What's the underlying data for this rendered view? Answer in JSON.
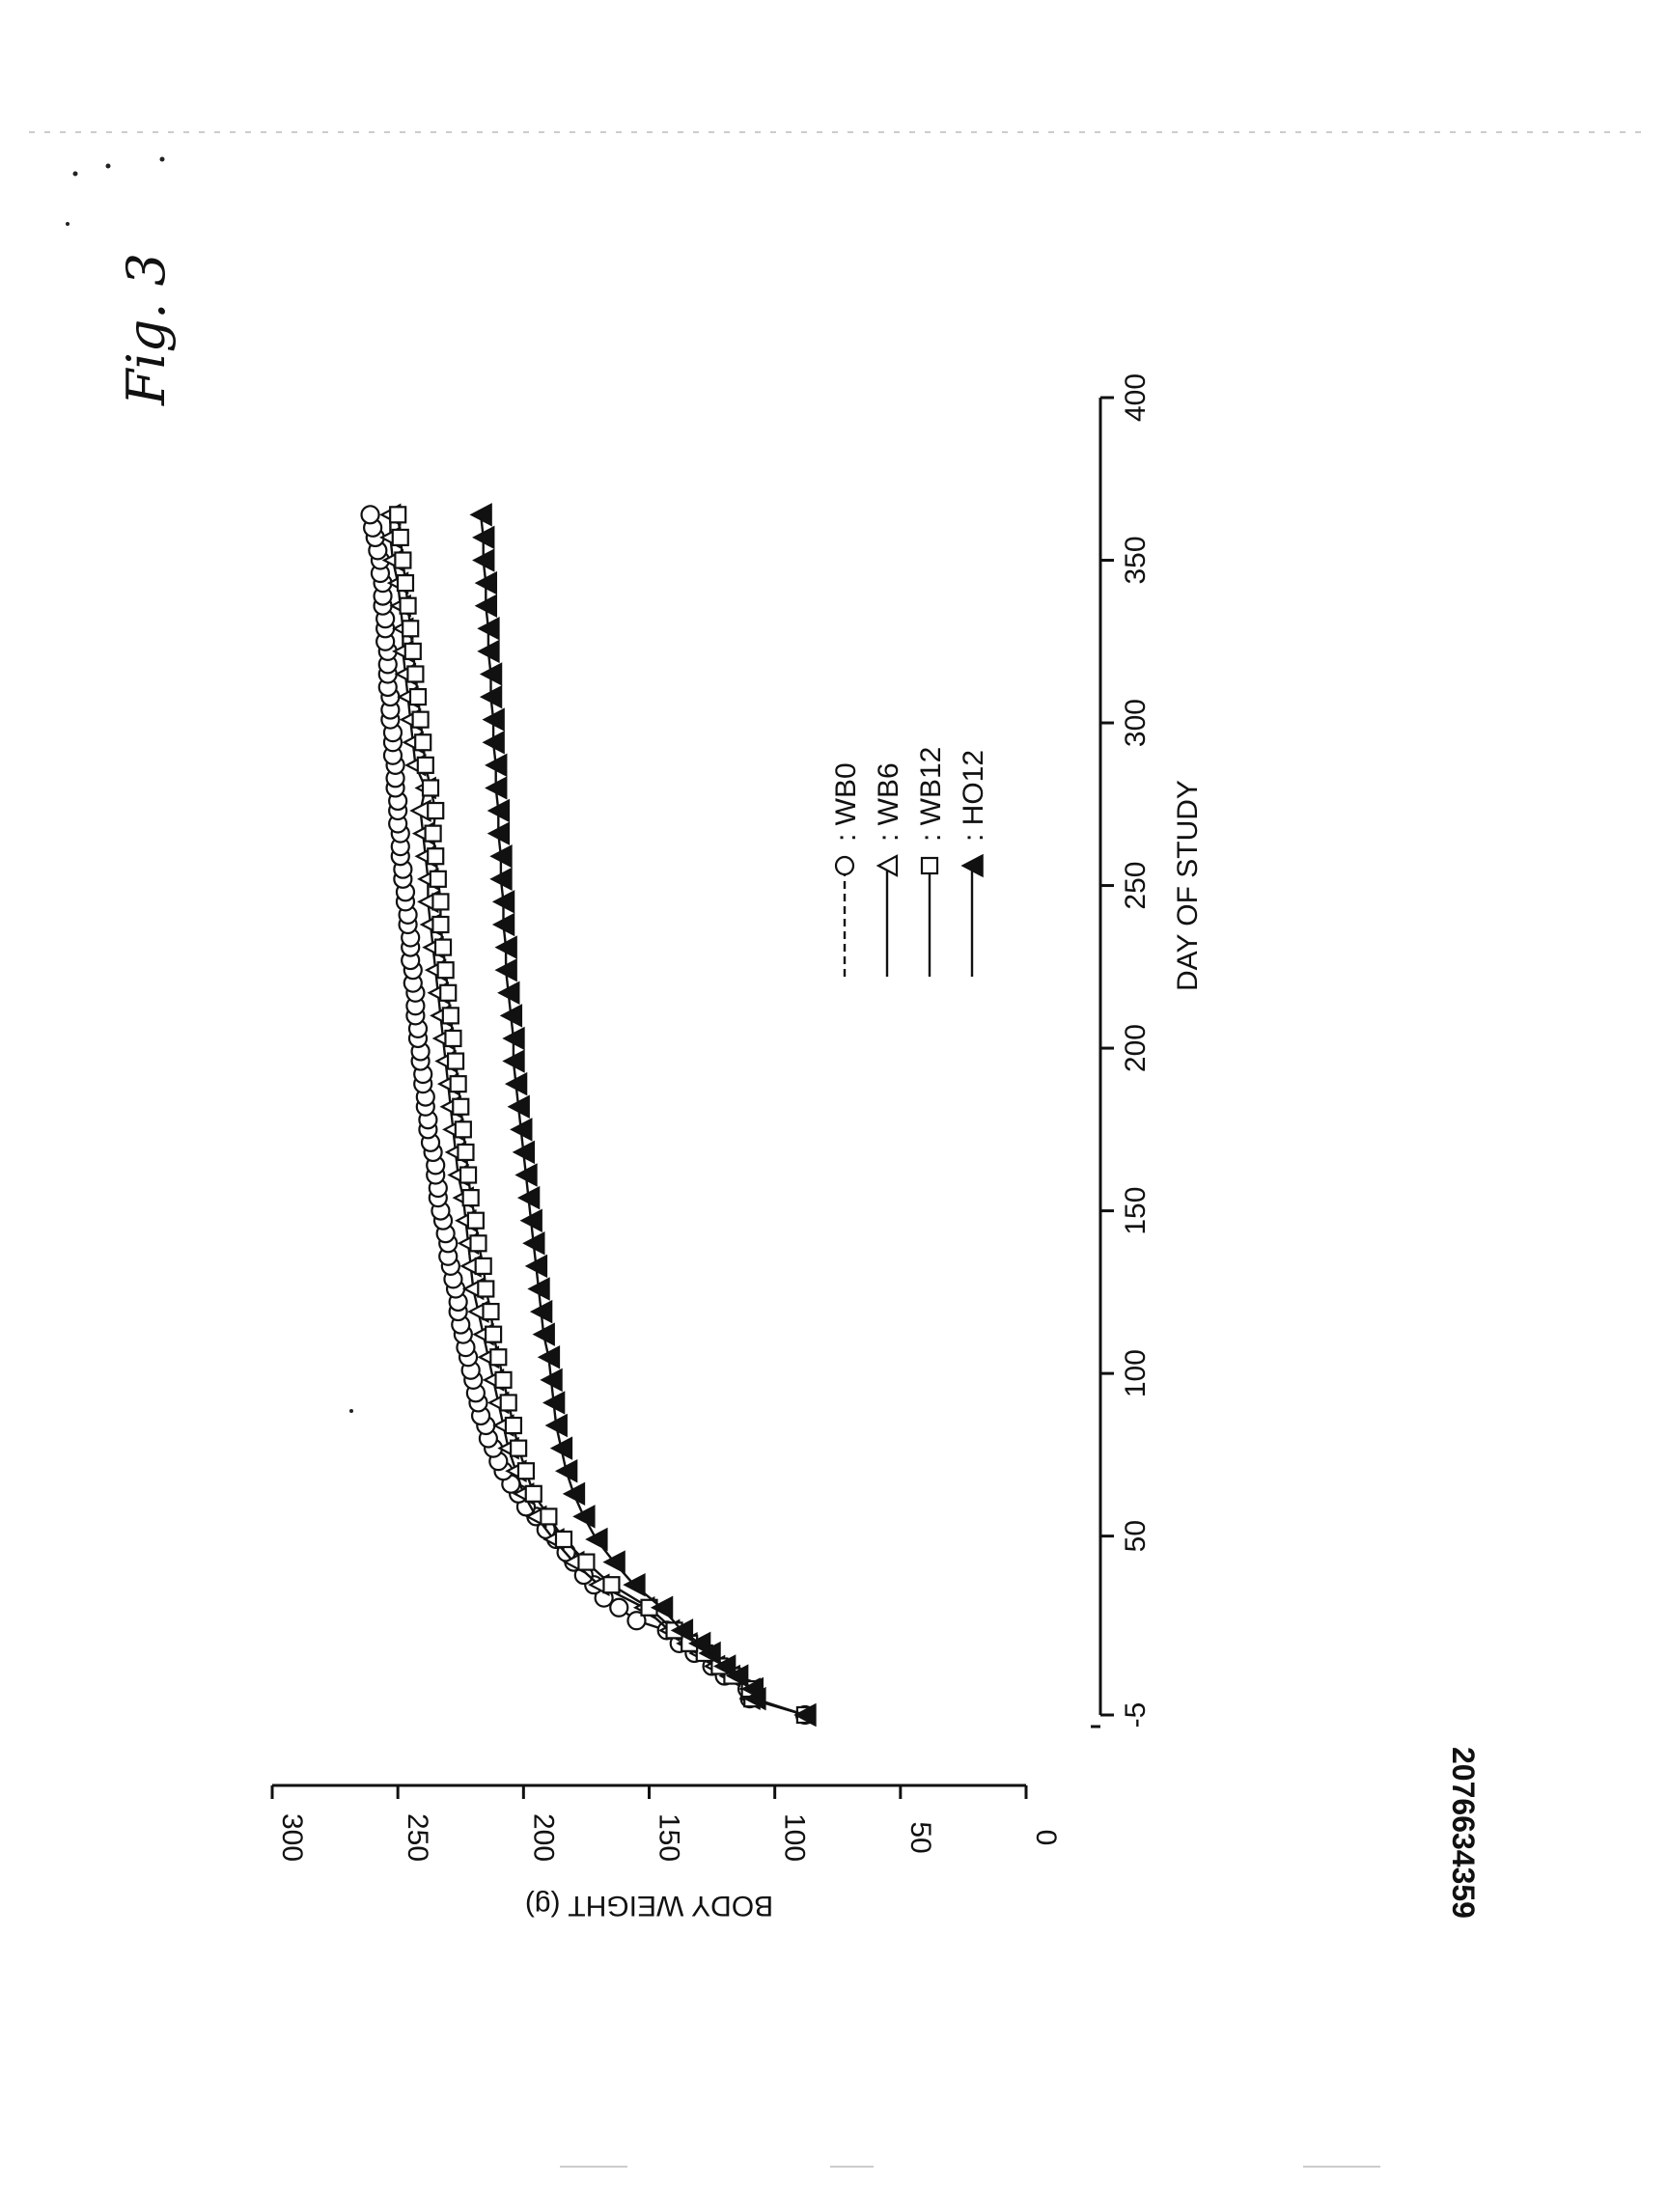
{
  "figure_label": "Fig. 3",
  "document_id": "2076634359",
  "chart_data": {
    "type": "line",
    "orientation": "rotated-90",
    "xlabel": "DAY OF STUDY",
    "ylabel": "BODY WEIGHT (g)",
    "xlim": [
      -5,
      400
    ],
    "ylim": [
      0,
      300
    ],
    "x_ticks": [
      -5,
      50,
      100,
      150,
      200,
      250,
      300,
      350,
      400
    ],
    "y_ticks": [
      0,
      50,
      100,
      150,
      200,
      250,
      300
    ],
    "legend_position": "center",
    "series": [
      {
        "name": "WB0",
        "marker": "open-circle",
        "line_style": "dashed",
        "x": [
          -5,
          0,
          3,
          7,
          10,
          14,
          17,
          21,
          24,
          28,
          31,
          35,
          38,
          42,
          45,
          49,
          52,
          56,
          59,
          63,
          66,
          70,
          73,
          77,
          80,
          84,
          87,
          91,
          94,
          98,
          101,
          105,
          108,
          112,
          115,
          119,
          122,
          126,
          129,
          133,
          136,
          140,
          143,
          147,
          150,
          154,
          157,
          161,
          164,
          168,
          171,
          175,
          178,
          182,
          185,
          189,
          192,
          196,
          199,
          203,
          206,
          210,
          213,
          217,
          220,
          224,
          227,
          231,
          234,
          238,
          241,
          245,
          248,
          252,
          255,
          259,
          262,
          266,
          269,
          273,
          276,
          280,
          283,
          287,
          290,
          294,
          297,
          301,
          304,
          308,
          311,
          315,
          318,
          322,
          325,
          329,
          332,
          336,
          339,
          343,
          346,
          350,
          353,
          357,
          360,
          364
        ],
        "y": [
          88,
          110,
          111,
          120,
          125,
          132,
          138,
          143,
          155,
          162,
          168,
          172,
          176,
          180,
          183,
          187,
          191,
          195,
          199,
          202,
          205,
          208,
          210,
          212,
          214,
          215,
          217,
          218,
          219,
          220,
          221,
          222,
          223,
          224,
          225,
          226,
          226,
          227,
          228,
          229,
          230,
          230,
          231,
          232,
          233,
          234,
          234,
          235,
          235,
          236,
          237,
          238,
          238,
          239,
          239,
          240,
          240,
          241,
          241,
          242,
          242,
          243,
          243,
          243,
          244,
          244,
          245,
          245,
          245,
          246,
          246,
          247,
          247,
          248,
          248,
          249,
          249,
          249,
          250,
          250,
          250,
          251,
          251,
          251,
          252,
          252,
          252,
          253,
          253,
          253,
          254,
          254,
          254,
          254,
          255,
          255,
          255,
          256,
          256,
          256,
          257,
          257,
          258,
          259,
          260,
          261
        ]
      },
      {
        "name": "WB6",
        "marker": "open-triangle",
        "line_style": "solid",
        "x": [
          -5,
          0,
          3,
          7,
          10,
          14,
          17,
          21,
          28,
          35,
          42,
          49,
          56,
          63,
          70,
          77,
          84,
          91,
          98,
          105,
          112,
          119,
          126,
          133,
          140,
          147,
          154,
          161,
          168,
          175,
          182,
          189,
          196,
          203,
          210,
          217,
          224,
          231,
          238,
          245,
          252,
          259,
          266,
          273,
          280,
          287,
          294,
          301,
          308,
          315,
          322,
          329,
          336,
          343,
          350,
          357,
          364
        ],
        "y": [
          88,
          110,
          110,
          118,
          124,
          130,
          135,
          142,
          152,
          170,
          180,
          188,
          195,
          200,
          203,
          206,
          208,
          210,
          212,
          214,
          216,
          218,
          220,
          221,
          222,
          223,
          224,
          226,
          227,
          228,
          229,
          230,
          231,
          232,
          233,
          234,
          235,
          236,
          237,
          238,
          238,
          239,
          240,
          241,
          239,
          243,
          244,
          245,
          246,
          247,
          248,
          248,
          249,
          250,
          252,
          253,
          253
        ]
      },
      {
        "name": "WB12",
        "marker": "open-square",
        "line_style": "solid",
        "x": [
          -5,
          0,
          3,
          7,
          10,
          14,
          17,
          21,
          28,
          35,
          42,
          49,
          56,
          63,
          70,
          77,
          84,
          91,
          98,
          105,
          112,
          119,
          126,
          133,
          140,
          147,
          154,
          161,
          168,
          175,
          182,
          189,
          196,
          203,
          210,
          217,
          224,
          231,
          238,
          245,
          252,
          259,
          266,
          273,
          280,
          287,
          294,
          301,
          308,
          315,
          322,
          329,
          336,
          343,
          350,
          357,
          364
        ],
        "y": [
          88,
          109,
          110,
          117,
          122,
          128,
          134,
          140,
          150,
          165,
          175,
          184,
          190,
          196,
          199,
          202,
          204,
          206,
          208,
          210,
          212,
          213,
          215,
          216,
          218,
          219,
          221,
          222,
          223,
          224,
          225,
          226,
          227,
          228,
          229,
          230,
          231,
          232,
          233,
          233,
          234,
          235,
          236,
          235,
          237,
          239,
          240,
          241,
          242,
          243,
          244,
          245,
          246,
          247,
          248,
          249,
          250
        ]
      },
      {
        "name": "HO12",
        "marker": "filled-triangle",
        "line_style": "solid",
        "x": [
          -5,
          0,
          3,
          7,
          10,
          14,
          17,
          21,
          28,
          35,
          42,
          49,
          56,
          63,
          70,
          77,
          84,
          91,
          98,
          105,
          112,
          119,
          126,
          133,
          140,
          147,
          154,
          161,
          168,
          175,
          182,
          189,
          196,
          203,
          210,
          217,
          224,
          231,
          238,
          245,
          252,
          259,
          266,
          273,
          280,
          287,
          294,
          301,
          308,
          315,
          322,
          329,
          336,
          343,
          350,
          357,
          364
        ],
        "y": [
          88,
          108,
          109,
          115,
          120,
          126,
          130,
          137,
          145,
          156,
          164,
          171,
          176,
          180,
          183,
          185,
          187,
          188,
          189,
          190,
          192,
          193,
          194,
          195,
          196,
          197,
          198,
          199,
          200,
          201,
          202,
          203,
          204,
          204,
          205,
          206,
          207,
          207,
          208,
          208,
          209,
          209,
          210,
          210,
          211,
          211,
          212,
          212,
          213,
          213,
          214,
          214,
          215,
          215,
          216,
          216,
          217
        ]
      }
    ]
  }
}
